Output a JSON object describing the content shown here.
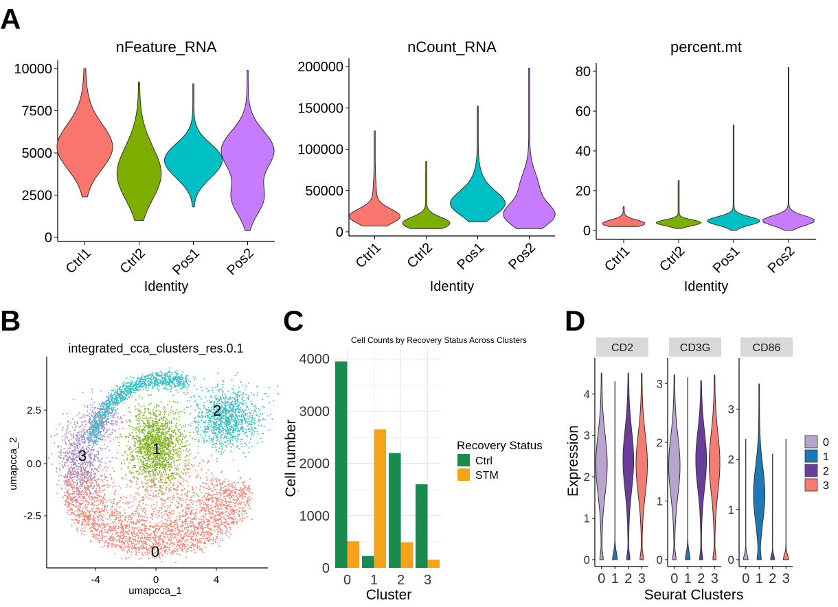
{
  "panel_labels": {
    "A": "A",
    "B": "B",
    "C": "C",
    "D": "D"
  },
  "colors": {
    "ctrl1": "#F8766D",
    "ctrl2": "#7CAE00",
    "pos1": "#00BFC4",
    "pos2": "#C77CFF",
    "cl0": "#B9A4CF",
    "cl1": "#1F78B4",
    "cl2": "#6A3D9A",
    "cl3": "#F47C73",
    "ctrl": "#1B8A4E",
    "stm": "#F6A31B",
    "umap0": "#EE8777",
    "umap1": "#86B62E",
    "umap2": "#3EBFC6",
    "umap3": "#AE8FCB"
  },
  "chart_data": [
    {
      "panel": "A",
      "type": "violin",
      "title": "nFeature_RNA",
      "xlabel": "Identity",
      "ylabel": "",
      "categories": [
        "Ctrl1",
        "Ctrl2",
        "Pos1",
        "Pos2"
      ],
      "ylim": [
        0,
        10000
      ],
      "yticks": [
        "0",
        "2500",
        "5000",
        "7500",
        "10000"
      ],
      "ranges": [
        [
          2400,
          10000
        ],
        [
          1000,
          9200
        ],
        [
          1800,
          9100
        ],
        [
          400,
          9900
        ]
      ],
      "modes": [
        5300,
        3800,
        4800,
        5000
      ]
    },
    {
      "panel": "A",
      "type": "violin",
      "title": "nCount_RNA",
      "xlabel": "Identity",
      "ylabel": "",
      "categories": [
        "Ctrl1",
        "Ctrl2",
        "Pos1",
        "Pos2"
      ],
      "ylim": [
        0,
        200000
      ],
      "yticks": [
        "0",
        "50000",
        "100000",
        "150000",
        "200000"
      ],
      "ranges": [
        [
          7000,
          122000
        ],
        [
          4000,
          85000
        ],
        [
          12000,
          152000
        ],
        [
          4000,
          198000
        ]
      ],
      "modes": [
        18000,
        10000,
        32000,
        25000
      ]
    },
    {
      "panel": "A",
      "type": "violin",
      "title": "percent.mt",
      "xlabel": "Identity",
      "ylabel": "",
      "categories": [
        "Ctrl1",
        "Ctrl2",
        "Pos1",
        "Pos2"
      ],
      "ylim": [
        0,
        80
      ],
      "yticks": [
        "0",
        "20",
        "40",
        "60",
        "80"
      ],
      "ranges": [
        [
          2,
          12
        ],
        [
          1,
          25
        ],
        [
          0,
          53
        ],
        [
          0,
          82
        ]
      ],
      "modes": [
        3.5,
        4,
        5,
        5
      ]
    },
    {
      "panel": "B",
      "type": "scatter",
      "title": "integrated_cca_clusters_res.0.1",
      "xlabel": "umapcca_1",
      "ylabel": "umapcca_2",
      "xticks": [
        "-4",
        "0",
        "4"
      ],
      "yticks": [
        "-2.5",
        "0.0",
        "2.5"
      ],
      "cluster_labels": [
        "0",
        "1",
        "2",
        "3"
      ]
    },
    {
      "panel": "C",
      "type": "bar",
      "title": "Cell Counts by Recovery Status Across Clusters",
      "xlabel": "Cluster",
      "ylabel": "Cell number",
      "categories": [
        "0",
        "1",
        "2",
        "3"
      ],
      "ylim": [
        0,
        4200
      ],
      "yticks": [
        "0",
        "1000",
        "2000",
        "3000",
        "4000"
      ],
      "legend_title": "Recovery Status",
      "series": [
        {
          "name": "Ctrl",
          "values": [
            3950,
            230,
            2200,
            1600
          ]
        },
        {
          "name": "STM",
          "values": [
            510,
            2650,
            490,
            160
          ]
        }
      ]
    },
    {
      "panel": "D",
      "type": "violin",
      "xlabel": "Seurat Clusters",
      "ylabel": "Expression",
      "categories": [
        "0",
        "1",
        "2",
        "3"
      ],
      "legend": [
        "0",
        "1",
        "2",
        "3"
      ],
      "facets": [
        {
          "title": "CD2",
          "ylim": [
            0,
            4.6
          ],
          "yticks": [
            "0",
            "1",
            "2",
            "3",
            "4"
          ],
          "maxes": [
            4.5,
            4.3,
            4.5,
            4.5
          ],
          "modes": [
            2.3,
            0.05,
            2.4,
            2.3
          ],
          "widths": [
            0.85,
            0.35,
            0.8,
            0.85
          ]
        },
        {
          "title": "CD3G",
          "ylim": [
            0,
            3.25
          ],
          "yticks": [
            "0",
            "1",
            "2",
            "3"
          ],
          "maxes": [
            3.15,
            3.1,
            3.05,
            3.15
          ],
          "modes": [
            1.6,
            0.05,
            1.7,
            1.65
          ],
          "widths": [
            0.85,
            0.35,
            0.8,
            0.8
          ]
        },
        {
          "title": "CD86",
          "ylim": [
            0,
            3.8
          ],
          "yticks": [
            "0",
            "1",
            "2",
            "3"
          ],
          "maxes": [
            2.4,
            3.5,
            2.1,
            2.4
          ],
          "modes": [
            0.03,
            1.3,
            0.03,
            0.05
          ],
          "widths": [
            0.35,
            0.85,
            0.3,
            0.4
          ]
        }
      ]
    }
  ]
}
